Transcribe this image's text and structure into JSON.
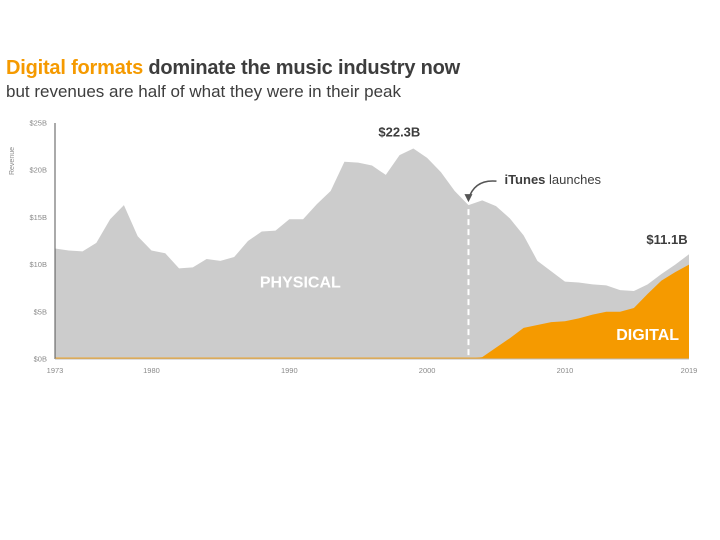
{
  "title": {
    "accent": "Digital formats",
    "rest": " dominate the music industry now"
  },
  "subtitle": "but revenues are half of what they were in their peak",
  "colors": {
    "physical": "#cccccc",
    "digital": "#f59a00",
    "text": "#3d3d3d",
    "axis": "#8a8a8a"
  },
  "chart_data": {
    "type": "area",
    "stacked": true,
    "ylabel": "Revenue",
    "ylim": [
      0,
      25
    ],
    "x_ticks": [
      1973,
      1980,
      1990,
      2000,
      2010,
      2019
    ],
    "y_ticks": [
      {
        "value": 0,
        "label": "$0B"
      },
      {
        "value": 5,
        "label": "$5B"
      },
      {
        "value": 10,
        "label": "$10B"
      },
      {
        "value": 15,
        "label": "$15B"
      },
      {
        "value": 20,
        "label": "$20B"
      },
      {
        "value": 25,
        "label": "$25B"
      }
    ],
    "x": [
      1973,
      1974,
      1975,
      1976,
      1977,
      1978,
      1979,
      1980,
      1981,
      1982,
      1983,
      1984,
      1985,
      1986,
      1987,
      1988,
      1989,
      1990,
      1991,
      1992,
      1993,
      1994,
      1995,
      1996,
      1997,
      1998,
      1999,
      2000,
      2001,
      2002,
      2003,
      2004,
      2005,
      2006,
      2007,
      2008,
      2009,
      2010,
      2011,
      2012,
      2013,
      2014,
      2015,
      2016,
      2017,
      2018,
      2019
    ],
    "series": [
      {
        "name": "PHYSICAL",
        "total": [
          11.7,
          11.5,
          11.4,
          12.3,
          14.8,
          16.3,
          13.0,
          11.5,
          11.2,
          9.6,
          9.7,
          10.6,
          10.4,
          10.8,
          12.5,
          13.5,
          13.6,
          14.8,
          14.8,
          16.4,
          17.8,
          20.9,
          20.8,
          20.5,
          19.5,
          21.6,
          22.3,
          21.3,
          19.8,
          17.8,
          16.3,
          16.8,
          16.2,
          14.9,
          13.1,
          10.4,
          9.3,
          8.2,
          8.1,
          7.9,
          7.8,
          7.3,
          7.2,
          7.9,
          9.0,
          10.0,
          11.1
        ]
      },
      {
        "name": "DIGITAL",
        "values": [
          0,
          0,
          0,
          0,
          0,
          0,
          0,
          0,
          0,
          0,
          0,
          0,
          0,
          0,
          0,
          0,
          0,
          0,
          0,
          0,
          0,
          0,
          0,
          0,
          0,
          0,
          0,
          0,
          0,
          0,
          0,
          0.2,
          1.2,
          2.2,
          3.3,
          3.6,
          3.9,
          4.0,
          4.3,
          4.7,
          5.0,
          5.0,
          5.4,
          6.9,
          8.3,
          9.2,
          10.0
        ]
      }
    ],
    "annotations": {
      "peak_label": "$22.3B",
      "peak_year": 1999,
      "peak_value": 22.3,
      "end_label": "$11.1B",
      "end_year": 2019,
      "end_value": 11.1,
      "event_year": 2003,
      "event_bold": "iTunes",
      "event_rest": " launches"
    }
  }
}
